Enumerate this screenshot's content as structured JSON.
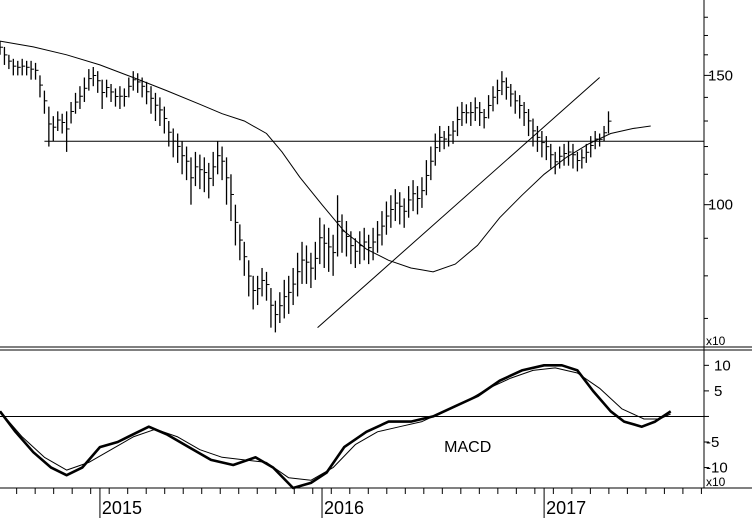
{
  "chart_data": [
    {
      "type": "ohlc",
      "panel": "price",
      "scale": "log",
      "ylim": [
        64,
        190
      ],
      "y_ticks": [
        100,
        150
      ],
      "y_tick_labels": [
        "100",
        "150"
      ],
      "multiplier_label": "x10",
      "x_axis": {
        "range": [
          2014.55,
          2017.72
        ],
        "year_ticks": [
          2015,
          2016,
          2017
        ],
        "year_labels": [
          "2015",
          "2016",
          "2017"
        ]
      },
      "horizontal_line": 122,
      "trendline": [
        [
          2015.98,
          68
        ],
        [
          2017.25,
          149
        ]
      ],
      "moving_average": [
        [
          2014.55,
          167
        ],
        [
          2014.7,
          164
        ],
        [
          2014.85,
          160
        ],
        [
          2015.0,
          155
        ],
        [
          2015.15,
          149
        ],
        [
          2015.3,
          143
        ],
        [
          2015.45,
          137
        ],
        [
          2015.55,
          133
        ],
        [
          2015.65,
          130
        ],
        [
          2015.75,
          125
        ],
        [
          2015.82,
          118
        ],
        [
          2015.9,
          109
        ],
        [
          2016.0,
          100
        ],
        [
          2016.1,
          92
        ],
        [
          2016.2,
          87
        ],
        [
          2016.3,
          84
        ],
        [
          2016.4,
          82
        ],
        [
          2016.45,
          81.5
        ],
        [
          2016.5,
          81
        ],
        [
          2016.6,
          83
        ],
        [
          2016.7,
          88
        ],
        [
          2016.8,
          96
        ],
        [
          2016.9,
          103
        ],
        [
          2017.0,
          110
        ],
        [
          2017.1,
          116
        ],
        [
          2017.2,
          121
        ],
        [
          2017.3,
          125
        ],
        [
          2017.4,
          127
        ],
        [
          2017.48,
          128
        ]
      ],
      "bars": [
        {
          "t": 2014.55,
          "h": 167,
          "l": 160
        },
        {
          "t": 2014.57,
          "h": 164,
          "l": 155
        },
        {
          "t": 2014.59,
          "h": 160,
          "l": 153
        },
        {
          "t": 2014.61,
          "h": 158,
          "l": 150
        },
        {
          "t": 2014.63,
          "h": 157,
          "l": 150
        },
        {
          "t": 2014.65,
          "h": 158,
          "l": 150
        },
        {
          "t": 2014.67,
          "h": 157,
          "l": 150
        },
        {
          "t": 2014.69,
          "h": 157,
          "l": 148
        },
        {
          "t": 2014.71,
          "h": 156,
          "l": 148
        },
        {
          "t": 2014.73,
          "h": 150,
          "l": 140
        },
        {
          "t": 2014.75,
          "h": 143,
          "l": 133
        },
        {
          "t": 2014.77,
          "h": 136,
          "l": 120
        },
        {
          "t": 2014.79,
          "h": 132,
          "l": 122
        },
        {
          "t": 2014.81,
          "h": 134,
          "l": 126
        },
        {
          "t": 2014.83,
          "h": 133,
          "l": 125
        },
        {
          "t": 2014.85,
          "h": 134,
          "l": 118
        },
        {
          "t": 2014.87,
          "h": 138,
          "l": 129
        },
        {
          "t": 2014.89,
          "h": 142,
          "l": 133
        },
        {
          "t": 2014.91,
          "h": 145,
          "l": 135
        },
        {
          "t": 2014.93,
          "h": 149,
          "l": 138
        },
        {
          "t": 2014.95,
          "h": 153,
          "l": 143
        },
        {
          "t": 2014.97,
          "h": 154,
          "l": 145
        },
        {
          "t": 2014.99,
          "h": 152,
          "l": 142
        },
        {
          "t": 2015.01,
          "h": 148,
          "l": 135
        },
        {
          "t": 2015.03,
          "h": 148,
          "l": 140
        },
        {
          "t": 2015.05,
          "h": 146,
          "l": 138
        },
        {
          "t": 2015.07,
          "h": 144,
          "l": 136
        },
        {
          "t": 2015.09,
          "h": 145,
          "l": 135
        },
        {
          "t": 2015.11,
          "h": 144,
          "l": 136
        },
        {
          "t": 2015.13,
          "h": 149,
          "l": 140
        },
        {
          "t": 2015.15,
          "h": 152,
          "l": 143
        },
        {
          "t": 2015.17,
          "h": 151,
          "l": 142
        },
        {
          "t": 2015.19,
          "h": 149,
          "l": 140
        },
        {
          "t": 2015.21,
          "h": 147,
          "l": 137
        },
        {
          "t": 2015.23,
          "h": 145,
          "l": 133
        },
        {
          "t": 2015.25,
          "h": 142,
          "l": 130
        },
        {
          "t": 2015.27,
          "h": 140,
          "l": 128
        },
        {
          "t": 2015.29,
          "h": 136,
          "l": 125
        },
        {
          "t": 2015.31,
          "h": 130,
          "l": 120
        },
        {
          "t": 2015.33,
          "h": 127,
          "l": 116
        },
        {
          "t": 2015.35,
          "h": 125,
          "l": 114
        },
        {
          "t": 2015.37,
          "h": 122,
          "l": 110
        },
        {
          "t": 2015.39,
          "h": 120,
          "l": 108
        },
        {
          "t": 2015.41,
          "h": 116,
          "l": 100
        },
        {
          "t": 2015.43,
          "h": 118,
          "l": 106
        },
        {
          "t": 2015.45,
          "h": 117,
          "l": 105
        },
        {
          "t": 2015.47,
          "h": 116,
          "l": 104
        },
        {
          "t": 2015.49,
          "h": 114,
          "l": 102
        },
        {
          "t": 2015.51,
          "h": 118,
          "l": 106
        },
        {
          "t": 2015.53,
          "h": 122,
          "l": 110
        },
        {
          "t": 2015.55,
          "h": 120,
          "l": 108
        },
        {
          "t": 2015.57,
          "h": 116,
          "l": 100
        },
        {
          "t": 2015.59,
          "h": 110,
          "l": 95
        },
        {
          "t": 2015.61,
          "h": 100,
          "l": 88
        },
        {
          "t": 2015.63,
          "h": 94,
          "l": 84
        },
        {
          "t": 2015.65,
          "h": 89,
          "l": 80
        },
        {
          "t": 2015.67,
          "h": 84,
          "l": 75
        },
        {
          "t": 2015.69,
          "h": 80,
          "l": 72
        },
        {
          "t": 2015.71,
          "h": 80,
          "l": 73
        },
        {
          "t": 2015.73,
          "h": 82,
          "l": 75
        },
        {
          "t": 2015.75,
          "h": 81,
          "l": 74
        },
        {
          "t": 2015.77,
          "h": 77,
          "l": 68
        },
        {
          "t": 2015.79,
          "h": 74,
          "l": 67
        },
        {
          "t": 2015.81,
          "h": 76,
          "l": 69
        },
        {
          "t": 2015.83,
          "h": 79,
          "l": 70
        },
        {
          "t": 2015.85,
          "h": 80,
          "l": 71
        },
        {
          "t": 2015.87,
          "h": 82,
          "l": 73
        },
        {
          "t": 2015.89,
          "h": 86,
          "l": 75
        },
        {
          "t": 2015.91,
          "h": 89,
          "l": 78
        },
        {
          "t": 2015.93,
          "h": 88,
          "l": 78
        },
        {
          "t": 2015.95,
          "h": 86,
          "l": 77
        },
        {
          "t": 2015.97,
          "h": 89,
          "l": 79
        },
        {
          "t": 2015.99,
          "h": 96,
          "l": 83
        },
        {
          "t": 2016.01,
          "h": 94,
          "l": 82
        },
        {
          "t": 2016.03,
          "h": 93,
          "l": 81
        },
        {
          "t": 2016.05,
          "h": 91,
          "l": 80
        },
        {
          "t": 2016.07,
          "h": 103,
          "l": 85
        },
        {
          "t": 2016.09,
          "h": 97,
          "l": 86
        },
        {
          "t": 2016.11,
          "h": 95,
          "l": 85
        },
        {
          "t": 2016.13,
          "h": 92,
          "l": 83
        },
        {
          "t": 2016.15,
          "h": 90,
          "l": 82
        },
        {
          "t": 2016.17,
          "h": 92,
          "l": 83
        },
        {
          "t": 2016.19,
          "h": 93,
          "l": 84
        },
        {
          "t": 2016.21,
          "h": 91,
          "l": 83
        },
        {
          "t": 2016.23,
          "h": 93,
          "l": 84
        },
        {
          "t": 2016.25,
          "h": 95,
          "l": 86
        },
        {
          "t": 2016.27,
          "h": 98,
          "l": 88
        },
        {
          "t": 2016.29,
          "h": 101,
          "l": 91
        },
        {
          "t": 2016.31,
          "h": 103,
          "l": 93
        },
        {
          "t": 2016.33,
          "h": 105,
          "l": 95
        },
        {
          "t": 2016.35,
          "h": 104,
          "l": 94
        },
        {
          "t": 2016.37,
          "h": 102,
          "l": 93
        },
        {
          "t": 2016.39,
          "h": 106,
          "l": 96
        },
        {
          "t": 2016.41,
          "h": 108,
          "l": 98
        },
        {
          "t": 2016.43,
          "h": 106,
          "l": 97
        },
        {
          "t": 2016.45,
          "h": 109,
          "l": 99
        },
        {
          "t": 2016.47,
          "h": 115,
          "l": 103
        },
        {
          "t": 2016.49,
          "h": 120,
          "l": 108
        },
        {
          "t": 2016.51,
          "h": 125,
          "l": 113
        },
        {
          "t": 2016.53,
          "h": 128,
          "l": 118
        },
        {
          "t": 2016.55,
          "h": 126,
          "l": 119
        },
        {
          "t": 2016.57,
          "h": 128,
          "l": 120
        },
        {
          "t": 2016.59,
          "h": 130,
          "l": 121
        },
        {
          "t": 2016.61,
          "h": 136,
          "l": 124
        },
        {
          "t": 2016.63,
          "h": 138,
          "l": 128
        },
        {
          "t": 2016.65,
          "h": 137,
          "l": 129
        },
        {
          "t": 2016.67,
          "h": 138,
          "l": 128
        },
        {
          "t": 2016.69,
          "h": 140,
          "l": 130
        },
        {
          "t": 2016.71,
          "h": 138,
          "l": 128
        },
        {
          "t": 2016.73,
          "h": 135,
          "l": 127
        },
        {
          "t": 2016.75,
          "h": 141,
          "l": 131
        },
        {
          "t": 2016.77,
          "h": 145,
          "l": 134
        },
        {
          "t": 2016.79,
          "h": 148,
          "l": 137
        },
        {
          "t": 2016.81,
          "h": 152,
          "l": 141
        },
        {
          "t": 2016.83,
          "h": 149,
          "l": 139
        },
        {
          "t": 2016.85,
          "h": 146,
          "l": 136
        },
        {
          "t": 2016.87,
          "h": 143,
          "l": 133
        },
        {
          "t": 2016.89,
          "h": 141,
          "l": 131
        },
        {
          "t": 2016.91,
          "h": 138,
          "l": 128
        },
        {
          "t": 2016.93,
          "h": 135,
          "l": 124
        },
        {
          "t": 2016.95,
          "h": 131,
          "l": 120
        },
        {
          "t": 2016.97,
          "h": 128,
          "l": 118
        },
        {
          "t": 2016.99,
          "h": 126,
          "l": 116
        },
        {
          "t": 2017.01,
          "h": 124,
          "l": 115
        },
        {
          "t": 2017.03,
          "h": 121,
          "l": 112
        },
        {
          "t": 2017.05,
          "h": 118,
          "l": 110
        },
        {
          "t": 2017.07,
          "h": 120,
          "l": 112
        },
        {
          "t": 2017.09,
          "h": 121,
          "l": 113
        },
        {
          "t": 2017.11,
          "h": 122,
          "l": 113
        },
        {
          "t": 2017.13,
          "h": 121,
          "l": 112
        },
        {
          "t": 2017.15,
          "h": 118,
          "l": 111
        },
        {
          "t": 2017.17,
          "h": 119,
          "l": 112
        },
        {
          "t": 2017.19,
          "h": 121,
          "l": 114
        },
        {
          "t": 2017.21,
          "h": 124,
          "l": 116
        },
        {
          "t": 2017.23,
          "h": 126,
          "l": 119
        },
        {
          "t": 2017.25,
          "h": 125,
          "l": 120
        },
        {
          "t": 2017.27,
          "h": 128,
          "l": 122
        },
        {
          "t": 2017.29,
          "h": 134,
          "l": 125
        }
      ]
    },
    {
      "type": "line",
      "panel": "indicator",
      "annotation": "MACD",
      "ylim": [
        -14,
        13
      ],
      "y_ticks": [
        10,
        5,
        -5,
        -10
      ],
      "y_tick_labels": [
        "10",
        "5",
        "-5",
        "-10"
      ],
      "zero_line": 0,
      "multiplier_label": "x10",
      "series": [
        {
          "values": [
            [
              2014.55,
              1
            ],
            [
              2014.62,
              -3
            ],
            [
              2014.7,
              -7
            ],
            [
              2014.78,
              -10
            ],
            [
              2014.85,
              -11.5
            ],
            [
              2014.92,
              -10
            ],
            [
              2015.0,
              -6
            ],
            [
              2015.08,
              -5
            ],
            [
              2015.15,
              -3.5
            ],
            [
              2015.22,
              -2
            ],
            [
              2015.3,
              -3.5
            ],
            [
              2015.4,
              -6
            ],
            [
              2015.5,
              -8.5
            ],
            [
              2015.6,
              -9.5
            ],
            [
              2015.7,
              -8
            ],
            [
              2015.78,
              -10
            ],
            [
              2015.87,
              -14
            ],
            [
              2015.95,
              -13
            ],
            [
              2016.02,
              -11
            ],
            [
              2016.1,
              -6
            ],
            [
              2016.2,
              -3
            ],
            [
              2016.3,
              -1
            ],
            [
              2016.4,
              -1
            ],
            [
              2016.5,
              0
            ],
            [
              2016.6,
              2
            ],
            [
              2016.7,
              4
            ],
            [
              2016.8,
              7
            ],
            [
              2016.9,
              9
            ],
            [
              2017.0,
              10
            ],
            [
              2017.08,
              10
            ],
            [
              2017.15,
              9
            ],
            [
              2017.22,
              5
            ],
            [
              2017.3,
              1
            ],
            [
              2017.36,
              -1
            ],
            [
              2017.44,
              -2
            ],
            [
              2017.5,
              -1
            ],
            [
              2017.57,
              1
            ]
          ]
        },
        {
          "values": [
            [
              2014.55,
              1
            ],
            [
              2014.65,
              -4
            ],
            [
              2014.75,
              -8
            ],
            [
              2014.85,
              -10.5
            ],
            [
              2014.95,
              -9
            ],
            [
              2015.05,
              -6.5
            ],
            [
              2015.15,
              -4
            ],
            [
              2015.25,
              -2.5
            ],
            [
              2015.35,
              -4
            ],
            [
              2015.45,
              -6.5
            ],
            [
              2015.55,
              -8
            ],
            [
              2015.65,
              -8.5
            ],
            [
              2015.75,
              -9
            ],
            [
              2015.85,
              -12
            ],
            [
              2015.95,
              -12.5
            ],
            [
              2016.05,
              -10
            ],
            [
              2016.15,
              -5.5
            ],
            [
              2016.25,
              -3
            ],
            [
              2016.35,
              -2
            ],
            [
              2016.45,
              -1
            ],
            [
              2016.55,
              1
            ],
            [
              2016.65,
              3
            ],
            [
              2016.75,
              5.5
            ],
            [
              2016.85,
              7.5
            ],
            [
              2016.95,
              9
            ],
            [
              2017.05,
              9.5
            ],
            [
              2017.15,
              8.5
            ],
            [
              2017.25,
              5.5
            ],
            [
              2017.35,
              1.5
            ],
            [
              2017.45,
              -0.5
            ],
            [
              2017.52,
              -0.5
            ],
            [
              2017.57,
              0.5
            ]
          ]
        }
      ]
    }
  ]
}
